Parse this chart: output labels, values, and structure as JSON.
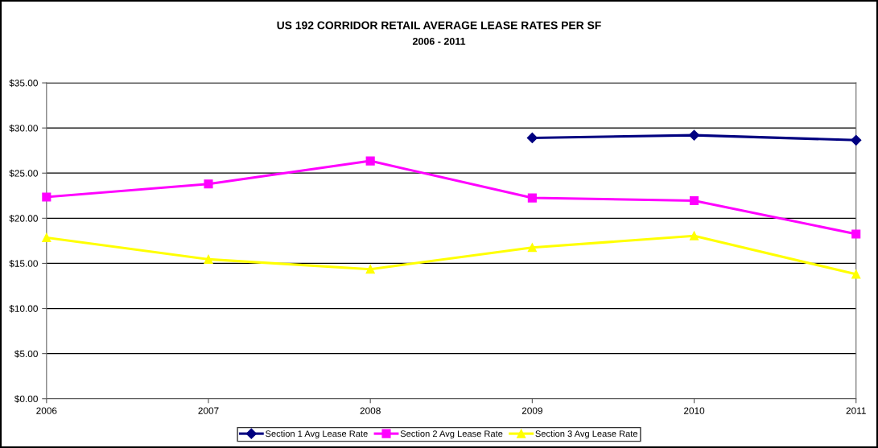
{
  "chart_data": {
    "type": "line",
    "title": "US 192 CORRIDOR RETAIL AVERAGE LEASE RATES PER SF",
    "subtitle": "2006 - 2011",
    "x": [
      2006,
      2007,
      2008,
      2009,
      2010,
      2011
    ],
    "series": [
      {
        "name": "Section 1 Avg Lease Rate",
        "color": "#000080",
        "marker": "diamond",
        "values": [
          null,
          null,
          null,
          28.9,
          29.2,
          28.65
        ]
      },
      {
        "name": "Section 2 Avg Lease Rate",
        "color": "#ff00ff",
        "marker": "square",
        "values": [
          22.35,
          23.8,
          26.35,
          22.25,
          21.95,
          18.25
        ]
      },
      {
        "name": "Section 3 Avg Lease Rate",
        "color": "#ffff00",
        "marker": "triangle",
        "values": [
          17.85,
          15.45,
          14.35,
          16.75,
          18.05,
          13.8
        ]
      }
    ],
    "xlim": [
      2006,
      2011
    ],
    "xticks": [
      2006,
      2007,
      2008,
      2009,
      2010,
      2011
    ],
    "ylim": [
      0,
      35
    ],
    "yticks": [
      {
        "value": 0,
        "label": "$0.00"
      },
      {
        "value": 5,
        "label": "$5.00"
      },
      {
        "value": 10,
        "label": "$10.00"
      },
      {
        "value": 15,
        "label": "$15.00"
      },
      {
        "value": 20,
        "label": "$20.00"
      },
      {
        "value": 25,
        "label": "$25.00"
      },
      {
        "value": 30,
        "label": "$30.00"
      },
      {
        "value": 35,
        "label": "$35.00"
      }
    ],
    "grid": "y",
    "legend": "bottom",
    "line_style": "solid"
  }
}
